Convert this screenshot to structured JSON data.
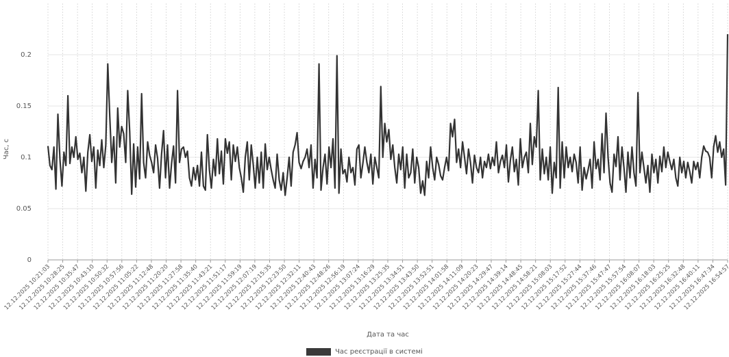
{
  "chart_data": {
    "type": "line",
    "title": "",
    "xlabel": "Дата та час",
    "ylabel": "Час, с",
    "ylim": [
      0,
      0.25
    ],
    "y_ticks": [
      "0",
      "0.05",
      "0.1",
      "0.15",
      "0.2"
    ],
    "y_tick_values": [
      0,
      0.05,
      0.1,
      0.15,
      0.2
    ],
    "grid": true,
    "legend_position": "bottom",
    "x_tick_labels": [
      "12.12.2025 10:21:03",
      "12.12.2025 10:28:25",
      "12.12.2025 10:35:47",
      "12.12.2025 10:43:10",
      "12.12.2025 10:50:32",
      "12.12.2025 10:57:56",
      "12.12.2025 11:05:22",
      "12.12.2025 11:12:48",
      "12.12.2025 11:20:20",
      "12.12.2025 11:27:58",
      "12.12.2025 11:35:40",
      "12.12.2025 11:43:21",
      "12.12.2025 11:51:17",
      "12.12.2025 11:59:19",
      "12.12.2025 12:07:19",
      "12.12.2025 12:15:35",
      "12.12.2025 12:23:50",
      "12.12.2025 12:32:11",
      "12.12.2025 12:40:43",
      "12.12.2025 12:48:26",
      "12.12.2025 12:56:19",
      "12.12.2025 13:07:24",
      "12.12.2025 13:16:29",
      "12.12.2025 13:25:35",
      "12.12.2025 13:34:51",
      "12.12.2025 13:43:50",
      "12.12.2025 13:52:51",
      "12.12.2025 14:01:58",
      "12.12.2025 14:11:09",
      "12.12.2025 14:20:23",
      "12.12.2025 14:29:47",
      "12.12.2025 14:39:14",
      "12.12.2025 14:48:45",
      "12.12.2025 14:58:21",
      "12.12.2025 15:08:03",
      "12.12.2025 15:17:52",
      "12.12.2025 15:27:44",
      "12.12.2025 15:37:46",
      "12.12.2025 15:47:47",
      "12.12.2025 15:57:54",
      "12.12.2025 16:08:07",
      "12.12.2025 16:18:03",
      "12.12.2025 16:25:25",
      "12.12.2025 16:32:48",
      "12.12.2025 16:40:11",
      "12.12.2025 16:47:34",
      "12.12.2025 16:54:57"
    ],
    "series": [
      {
        "name": "Час реєстрації в системі",
        "color": "#333333",
        "values": [
          0.111,
          0.092,
          0.088,
          0.11,
          0.069,
          0.142,
          0.098,
          0.072,
          0.105,
          0.092,
          0.16,
          0.094,
          0.11,
          0.1,
          0.12,
          0.098,
          0.104,
          0.085,
          0.1,
          0.067,
          0.105,
          0.122,
          0.096,
          0.11,
          0.07,
          0.107,
          0.092,
          0.117,
          0.09,
          0.112,
          0.191,
          0.14,
          0.095,
          0.12,
          0.075,
          0.148,
          0.11,
          0.13,
          0.123,
          0.095,
          0.165,
          0.125,
          0.064,
          0.113,
          0.071,
          0.11,
          0.079,
          0.162,
          0.095,
          0.08,
          0.115,
          0.102,
          0.095,
          0.085,
          0.112,
          0.099,
          0.07,
          0.103,
          0.126,
          0.08,
          0.112,
          0.07,
          0.094,
          0.111,
          0.075,
          0.165,
          0.095,
          0.108,
          0.11,
          0.1,
          0.106,
          0.08,
          0.072,
          0.09,
          0.078,
          0.092,
          0.072,
          0.105,
          0.072,
          0.068,
          0.122,
          0.088,
          0.07,
          0.098,
          0.082,
          0.118,
          0.084,
          0.106,
          0.074,
          0.118,
          0.104,
          0.115,
          0.078,
          0.112,
          0.096,
          0.11,
          0.09,
          0.08,
          0.066,
          0.1,
          0.115,
          0.078,
          0.112,
          0.093,
          0.07,
          0.1,
          0.075,
          0.105,
          0.07,
          0.113,
          0.088,
          0.1,
          0.088,
          0.078,
          0.07,
          0.103,
          0.078,
          0.068,
          0.085,
          0.063,
          0.08,
          0.1,
          0.072,
          0.105,
          0.112,
          0.124,
          0.095,
          0.089,
          0.096,
          0.1,
          0.108,
          0.09,
          0.112,
          0.07,
          0.098,
          0.08,
          0.191,
          0.068,
          0.09,
          0.103,
          0.074,
          0.11,
          0.09,
          0.118,
          0.07,
          0.199,
          0.065,
          0.108,
          0.084,
          0.088,
          0.076,
          0.1,
          0.085,
          0.09,
          0.073,
          0.108,
          0.112,
          0.08,
          0.094,
          0.11,
          0.095,
          0.085,
          0.103,
          0.074,
          0.1,
          0.09,
          0.08,
          0.169,
          0.1,
          0.133,
          0.115,
          0.127,
          0.098,
          0.112,
          0.09,
          0.075,
          0.103,
          0.088,
          0.11,
          0.07,
          0.103,
          0.08,
          0.085,
          0.108,
          0.075,
          0.1,
          0.09,
          0.065,
          0.077,
          0.063,
          0.096,
          0.08,
          0.11,
          0.09,
          0.078,
          0.1,
          0.093,
          0.082,
          0.078,
          0.09,
          0.1,
          0.087,
          0.133,
          0.12,
          0.137,
          0.095,
          0.108,
          0.09,
          0.115,
          0.1,
          0.084,
          0.108,
          0.095,
          0.075,
          0.102,
          0.09,
          0.085,
          0.1,
          0.08,
          0.096,
          0.09,
          0.103,
          0.089,
          0.1,
          0.092,
          0.115,
          0.085,
          0.096,
          0.102,
          0.09,
          0.112,
          0.076,
          0.097,
          0.11,
          0.086,
          0.098,
          0.073,
          0.118,
          0.09,
          0.1,
          0.105,
          0.085,
          0.133,
          0.093,
          0.12,
          0.11,
          0.165,
          0.078,
          0.108,
          0.084,
          0.1,
          0.078,
          0.11,
          0.065,
          0.095,
          0.08,
          0.168,
          0.07,
          0.115,
          0.08,
          0.11,
          0.09,
          0.1,
          0.086,
          0.103,
          0.095,
          0.075,
          0.11,
          0.068,
          0.09,
          0.079,
          0.088,
          0.098,
          0.07,
          0.115,
          0.089,
          0.098,
          0.078,
          0.123,
          0.085,
          0.143,
          0.1,
          0.075,
          0.066,
          0.103,
          0.091,
          0.12,
          0.078,
          0.11,
          0.09,
          0.066,
          0.105,
          0.08,
          0.11,
          0.085,
          0.072,
          0.163,
          0.085,
          0.105,
          0.09,
          0.075,
          0.092,
          0.066,
          0.103,
          0.085,
          0.098,
          0.075,
          0.101,
          0.086,
          0.11,
          0.09,
          0.105,
          0.096,
          0.088,
          0.098,
          0.08,
          0.072,
          0.1,
          0.085,
          0.096,
          0.08,
          0.095,
          0.086,
          0.075,
          0.096,
          0.088,
          0.095,
          0.08,
          0.1,
          0.111,
          0.106,
          0.105,
          0.1,
          0.08,
          0.11,
          0.121,
          0.105,
          0.115,
          0.1,
          0.108,
          0.073,
          0.22
        ]
      }
    ]
  },
  "legend": {
    "label": "Час реєстрації в системі",
    "swatch_color": "#3a3a3a"
  }
}
